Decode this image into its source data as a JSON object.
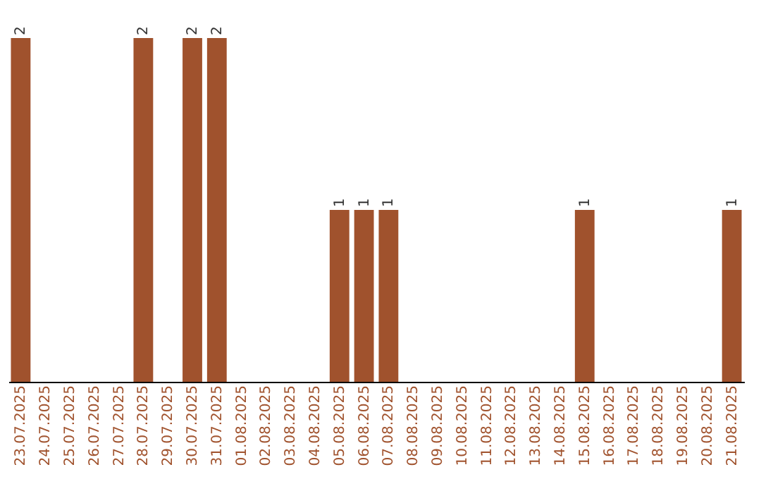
{
  "chart_data": {
    "type": "bar",
    "categories": [
      "23.07.2025",
      "24.07.2025",
      "25.07.2025",
      "26.07.2025",
      "27.07.2025",
      "28.07.2025",
      "29.07.2025",
      "30.07.2025",
      "31.07.2025",
      "01.08.2025",
      "02.08.2025",
      "03.08.2025",
      "04.08.2025",
      "05.08.2025",
      "06.08.2025",
      "07.08.2025",
      "08.08.2025",
      "09.08.2025",
      "10.08.2025",
      "11.08.2025",
      "12.08.2025",
      "13.08.2025",
      "14.08.2025",
      "15.08.2025",
      "16.08.2025",
      "17.08.2025",
      "18.08.2025",
      "19.08.2025",
      "20.08.2025",
      "21.08.2025"
    ],
    "values": [
      2,
      0,
      0,
      0,
      0,
      2,
      0,
      2,
      2,
      0,
      0,
      0,
      0,
      1,
      1,
      1,
      0,
      0,
      0,
      0,
      0,
      0,
      0,
      1,
      0,
      0,
      0,
      0,
      0,
      1
    ],
    "value_labels": [
      "2",
      null,
      null,
      null,
      null,
      "2",
      null,
      "2",
      "2",
      null,
      null,
      null,
      null,
      "1",
      "1",
      "1",
      null,
      null,
      null,
      null,
      null,
      null,
      null,
      "1",
      null,
      null,
      null,
      null,
      null,
      "1"
    ],
    "color": "#a0522d",
    "tick_labels": "x"
  }
}
